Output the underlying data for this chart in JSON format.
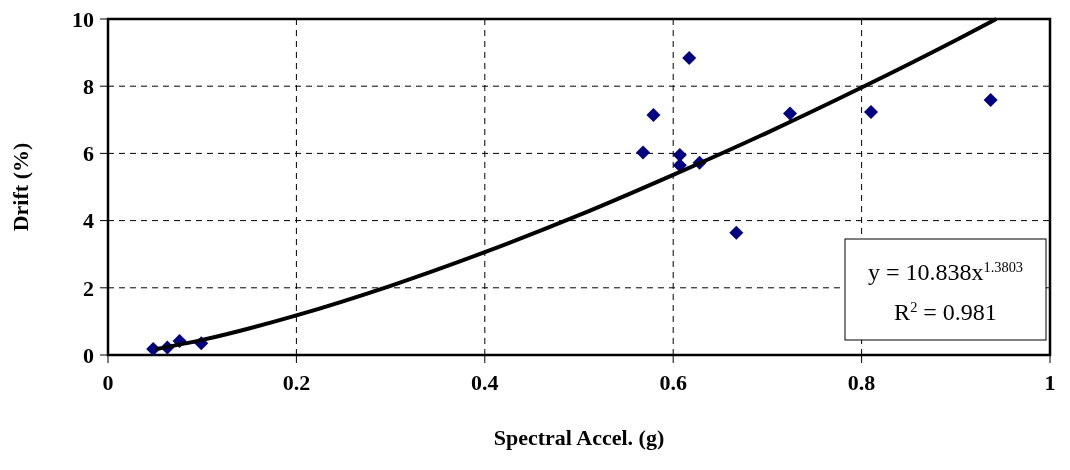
{
  "chart_data": {
    "type": "scatter",
    "xlabel": "Spectral Accel. (g)",
    "ylabel": "Drift (%)",
    "xlim": [
      0,
      1
    ],
    "xticks": [
      0,
      0.2,
      0.4,
      0.6,
      0.8,
      1
    ],
    "ylim": [
      0,
      10
    ],
    "yticks": [
      0,
      2,
      4,
      6,
      8,
      10
    ],
    "grid": true,
    "series": [
      {
        "color": "#000080",
        "marker": "diamond",
        "x": [
          0.048,
          0.063,
          0.076,
          0.099,
          0.568,
          0.579,
          0.607,
          0.607,
          0.617,
          0.628,
          0.667,
          0.724,
          0.81,
          0.937
        ],
        "values": [
          0.18,
          0.22,
          0.42,
          0.35,
          6.03,
          7.14,
          5.95,
          5.65,
          8.84,
          5.72,
          3.64,
          7.19,
          7.23,
          7.59
        ]
      },
      {
        "type": "line",
        "color": "#000000",
        "marker": "none",
        "x": [
          0.05,
          0.1,
          0.2,
          0.3,
          0.4,
          0.5,
          0.6,
          0.7,
          0.8,
          0.9,
          0.943
        ],
        "values": [
          0.17,
          0.45,
          1.18,
          2.06,
          3.06,
          4.16,
          5.36,
          6.62,
          7.96,
          9.37,
          10
        ]
      }
    ],
    "annotations": [
      "y = 10.838x$^{1.3803}$",
      "R$^{2}$ = 0.981"
    ]
  }
}
